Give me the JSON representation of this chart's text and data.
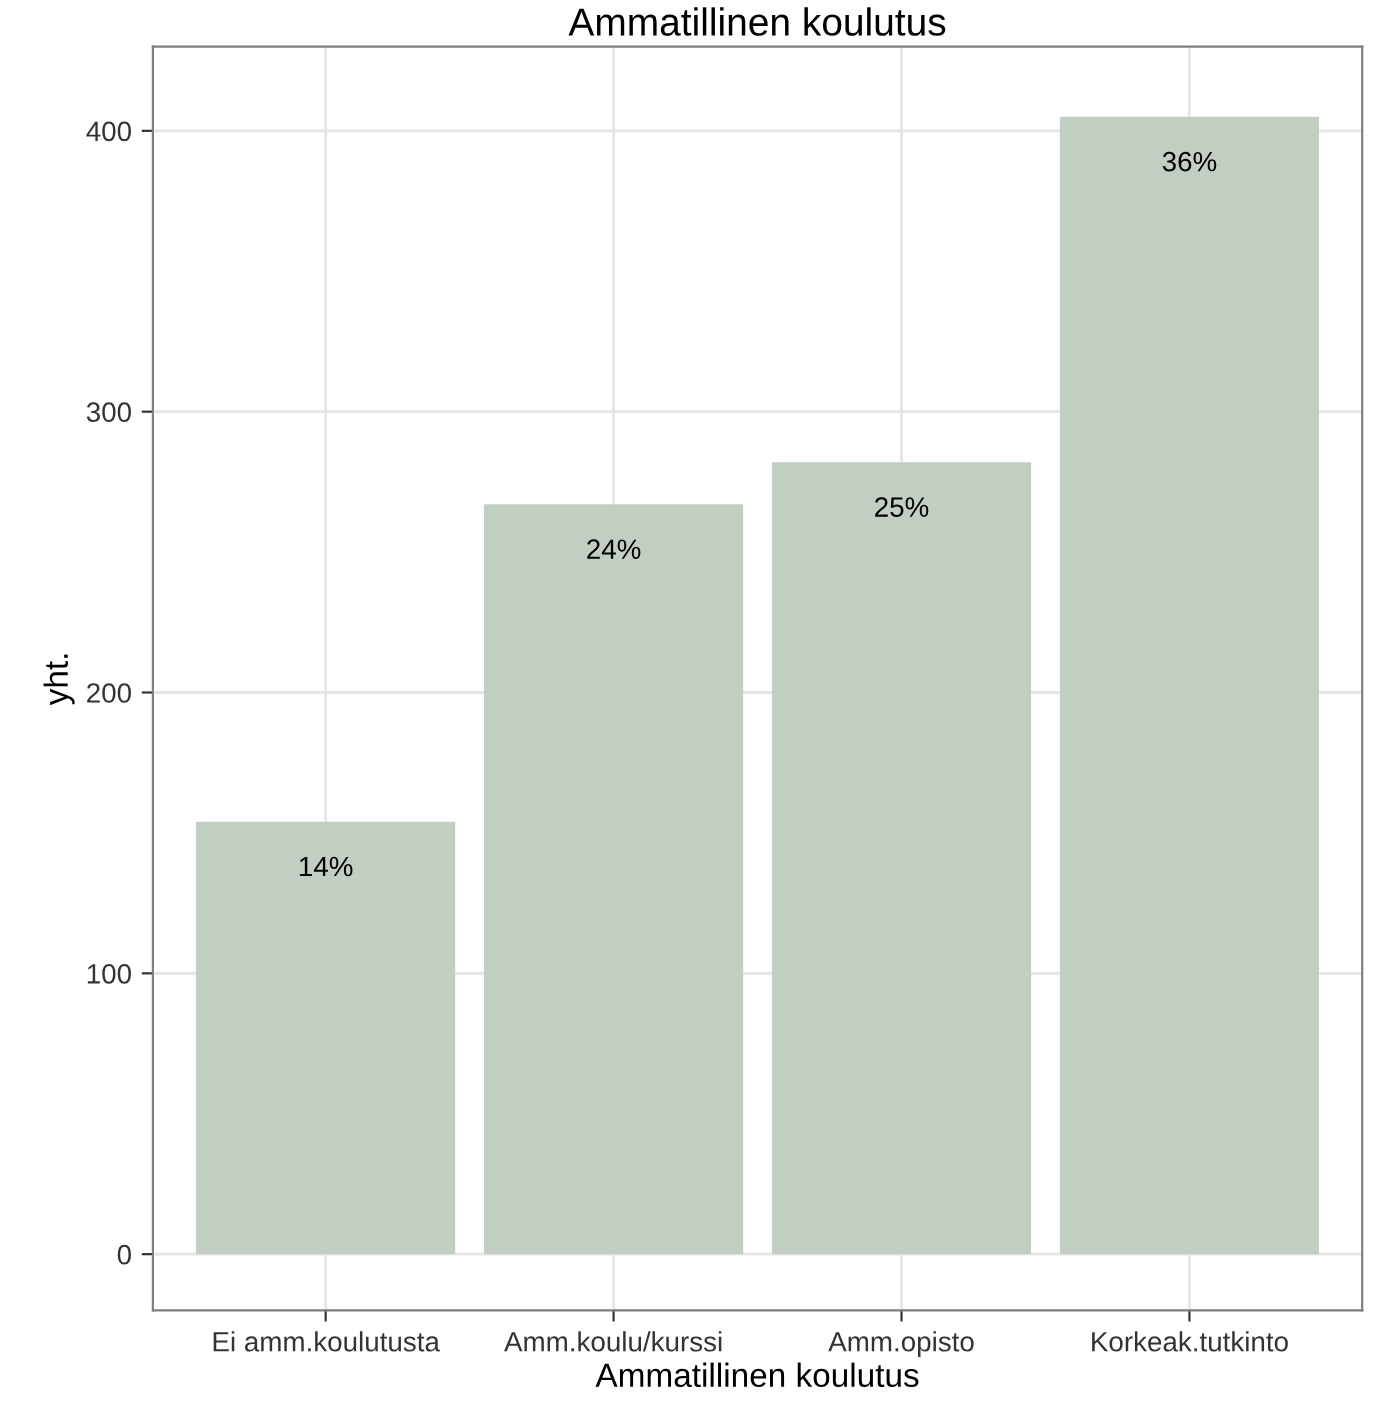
{
  "chart_data": {
    "type": "bar",
    "title": "Ammatillinen koulutus",
    "xlabel": "Ammatillinen koulutus",
    "ylabel": "yht.",
    "categories": [
      "Ei amm.koulutusta",
      "Amm.koulu/kurssi",
      "Amm.opisto",
      "Korkeak.tutkinto"
    ],
    "values": [
      154,
      267,
      282,
      405
    ],
    "annotations": [
      {
        "text": "14%",
        "x": "Ei amm.koulutusta",
        "y": 154
      },
      {
        "text": "24%",
        "x": "Amm.koulu/kurssi",
        "y": 267
      },
      {
        "text": "25%",
        "x": "Amm.opisto",
        "y": 282
      },
      {
        "text": "36%",
        "x": "Korkeak.tutkinto",
        "y": 405
      }
    ],
    "color": "#c2cec2",
    "ylim": [
      -20,
      430
    ],
    "yticks": [
      0,
      100,
      200,
      300,
      400
    ],
    "grid": true
  }
}
